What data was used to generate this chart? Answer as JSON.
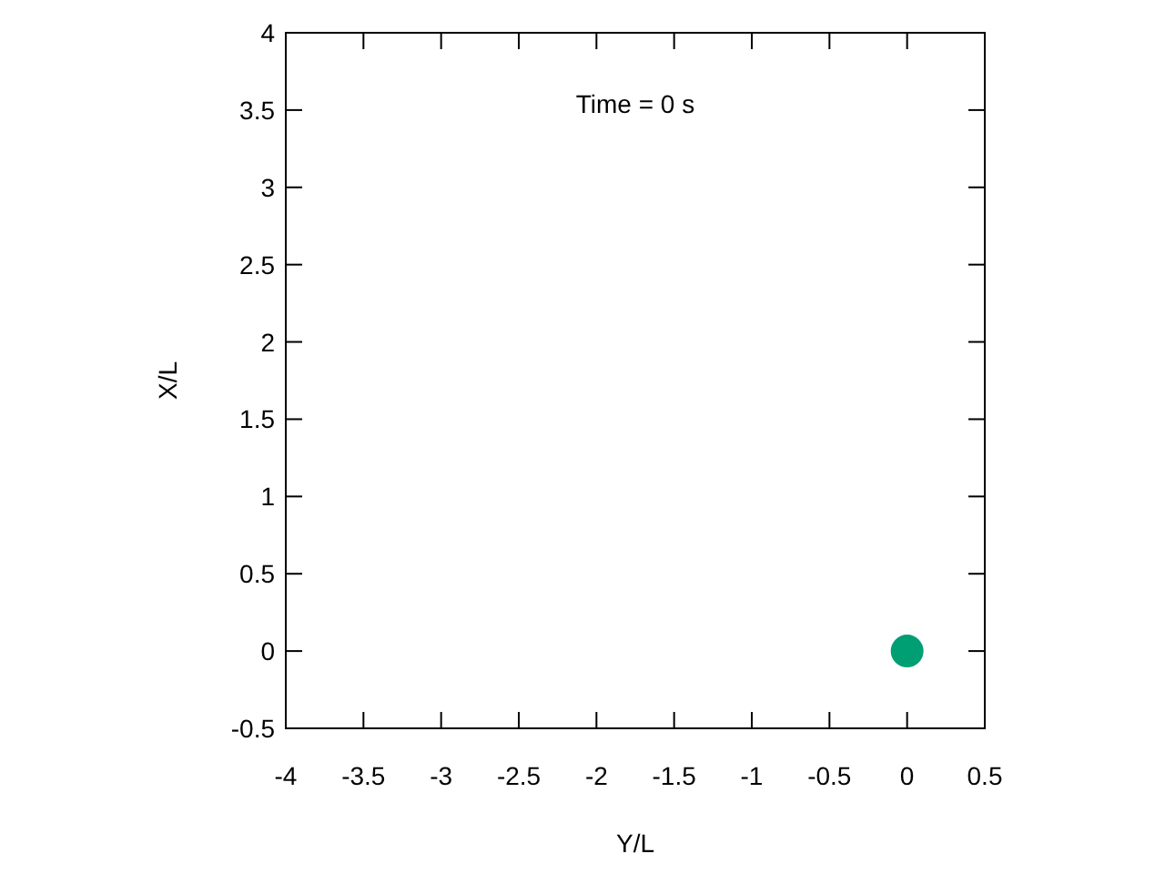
{
  "chart_data": {
    "type": "scatter",
    "xlabel": "Y/L",
    "ylabel": "X/L",
    "annotations": [
      "Time = 0 s"
    ],
    "x": [
      0
    ],
    "values": [
      0
    ],
    "color": "#009e73",
    "marker": "circle",
    "xlim": [
      -4,
      0.5
    ],
    "ylim": [
      -0.5,
      4
    ],
    "xticks": [
      -4,
      -3.5,
      -3,
      -2.5,
      -2,
      -1.5,
      -1,
      -0.5,
      0,
      0.5
    ],
    "yticks": [
      -0.5,
      0,
      0.5,
      1,
      1.5,
      2,
      2.5,
      3,
      3.5,
      4
    ],
    "grid": false
  }
}
